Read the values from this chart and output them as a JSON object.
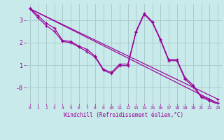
{
  "xlabel": "Windchill (Refroidissement éolien,°C)",
  "bg_color": "#c8eaea",
  "grid_color": "#aacccc",
  "line_color": "#990099",
  "x_ticks": [
    0,
    1,
    2,
    3,
    4,
    5,
    6,
    7,
    8,
    9,
    10,
    11,
    12,
    13,
    14,
    15,
    16,
    17,
    18,
    19,
    20,
    21,
    22,
    23
  ],
  "y_ticks": [
    3,
    2,
    1,
    0
  ],
  "y_tick_labels": [
    "3",
    "2",
    "1",
    "-0"
  ],
  "xlim": [
    -0.5,
    23.5
  ],
  "ylim": [
    -0.7,
    3.7
  ],
  "lines": [
    {
      "x": [
        0,
        1,
        2,
        3,
        4,
        5,
        6,
        7,
        8,
        9,
        10,
        11,
        12,
        13,
        14,
        15,
        16,
        17,
        18,
        19,
        20,
        21,
        22,
        23
      ],
      "y": [
        3.5,
        3.2,
        2.85,
        2.65,
        2.1,
        2.05,
        1.85,
        1.7,
        1.4,
        0.82,
        0.68,
        1.05,
        1.05,
        2.5,
        3.3,
        2.93,
        2.15,
        1.25,
        1.25,
        0.45,
        0.12,
        -0.38,
        -0.52,
        -0.68
      ]
    },
    {
      "x": [
        0,
        1,
        2,
        3,
        4,
        5,
        6,
        7,
        8,
        9,
        10,
        11,
        12,
        13,
        14,
        15,
        16,
        17,
        18,
        19,
        20,
        21,
        22,
        23
      ],
      "y": [
        3.5,
        3.1,
        2.75,
        2.5,
        2.05,
        2.0,
        1.8,
        1.6,
        1.35,
        0.78,
        0.62,
        0.98,
        0.98,
        2.45,
        3.25,
        2.88,
        2.1,
        1.2,
        1.2,
        0.38,
        0.05,
        -0.42,
        -0.58,
        -0.72
      ]
    },
    {
      "x": [
        0,
        23
      ],
      "y": [
        3.5,
        -0.68
      ]
    },
    {
      "x": [
        0,
        23
      ],
      "y": [
        3.5,
        -0.5
      ]
    }
  ]
}
